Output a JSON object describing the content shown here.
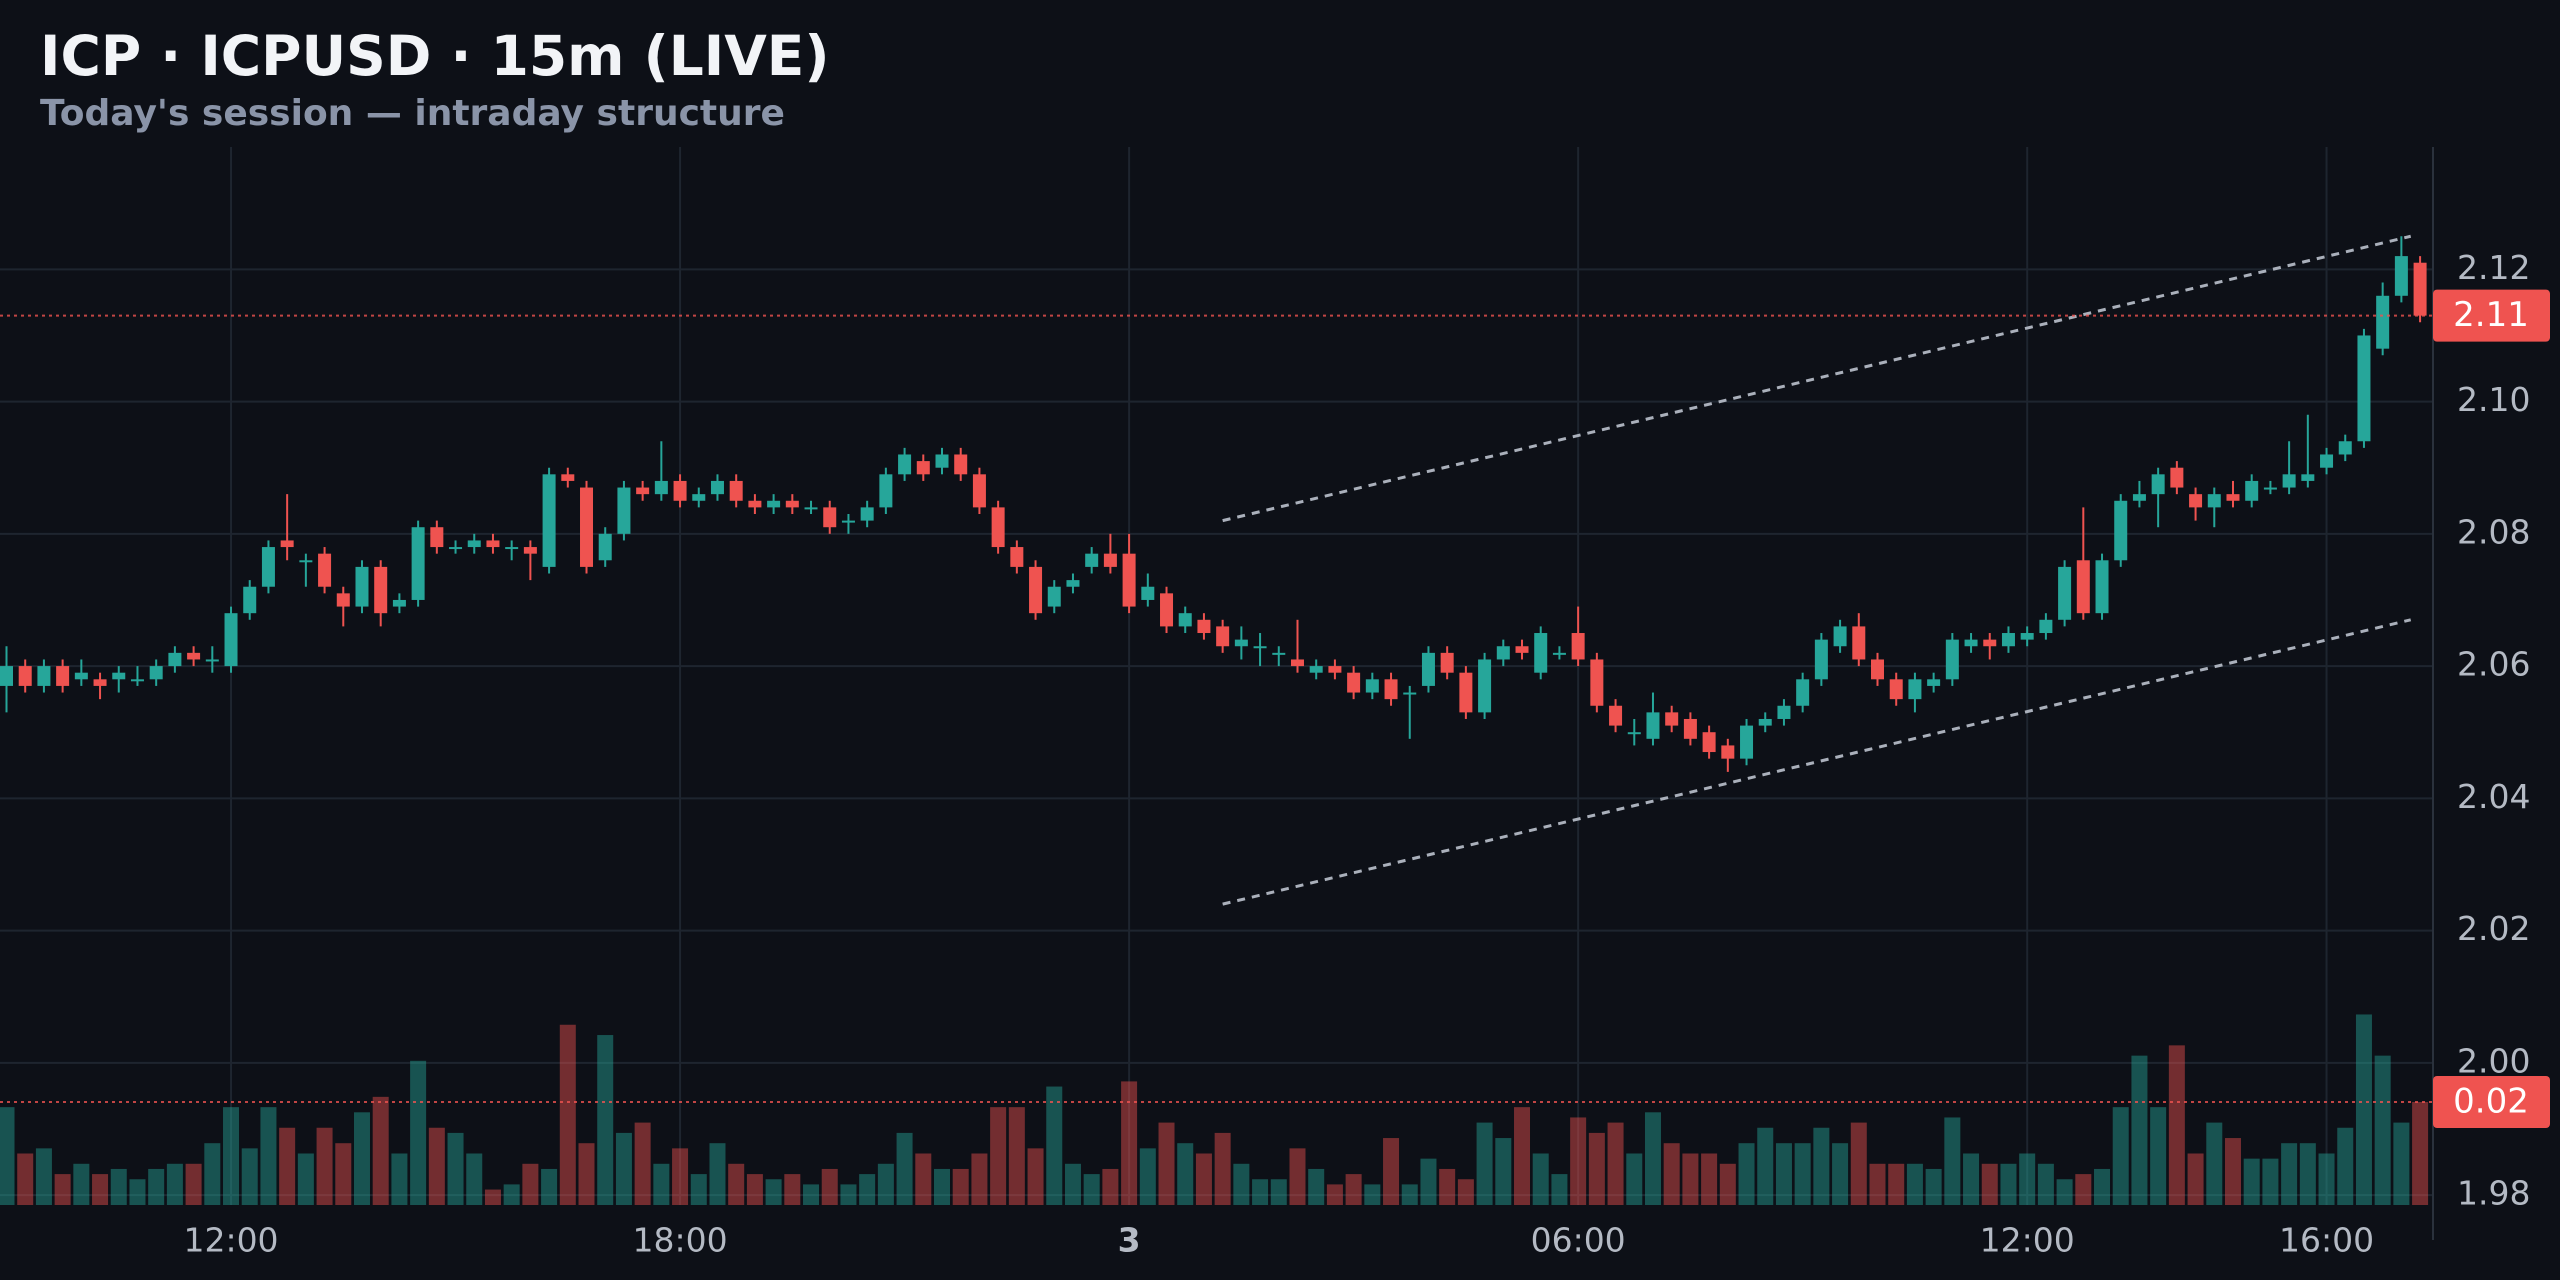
{
  "chart_data": {
    "type": "candlestick",
    "title": "ICP · ICPUSD · 15m (LIVE)",
    "subtitle": "Today's session — intraday structure",
    "categories": [
      null,
      null,
      null,
      null,
      null,
      null,
      null,
      null,
      null,
      null,
      null,
      null,
      "12:00",
      null,
      null,
      null,
      null,
      null,
      null,
      null,
      null,
      null,
      null,
      null,
      null,
      null,
      null,
      null,
      null,
      null,
      null,
      null,
      null,
      null,
      null,
      null,
      "18:00",
      null,
      null,
      null,
      null,
      null,
      null,
      null,
      null,
      null,
      null,
      null,
      null,
      null,
      null,
      null,
      null,
      null,
      null,
      null,
      null,
      null,
      null,
      null,
      "3",
      null,
      null,
      null,
      null,
      null,
      null,
      null,
      null,
      null,
      null,
      null,
      null,
      null,
      null,
      null,
      null,
      null,
      null,
      null,
      null,
      null,
      null,
      null,
      "06:00",
      null,
      null,
      null,
      null,
      null,
      null,
      null,
      null,
      null,
      null,
      null,
      null,
      null,
      null,
      null,
      null,
      null,
      null,
      null,
      null,
      null,
      null,
      null,
      "12:00",
      null,
      null,
      null,
      null,
      null,
      null,
      null,
      null,
      null,
      null,
      null,
      null,
      null,
      null,
      null,
      "16:00",
      null,
      null,
      null,
      null,
      null
    ],
    "open": [
      2.057,
      2.06,
      2.057,
      2.06,
      2.058,
      2.058,
      2.058,
      2.058,
      2.058,
      2.06,
      2.062,
      2.061,
      2.06,
      2.068,
      2.072,
      2.079,
      2.076,
      2.077,
      2.071,
      2.069,
      2.075,
      2.069,
      2.07,
      2.081,
      2.078,
      2.078,
      2.079,
      2.078,
      2.078,
      2.075,
      2.089,
      2.087,
      2.076,
      2.08,
      2.087,
      2.086,
      2.088,
      2.085,
      2.086,
      2.088,
      2.085,
      2.084,
      2.085,
      2.084,
      2.084,
      2.082,
      2.082,
      2.084,
      2.089,
      2.091,
      2.09,
      2.092,
      2.089,
      2.084,
      2.078,
      2.075,
      2.069,
      2.072,
      2.075,
      2.077,
      2.077,
      2.07,
      2.071,
      2.066,
      2.067,
      2.066,
      2.063,
      2.063,
      2.062,
      2.061,
      2.059,
      2.06,
      2.059,
      2.056,
      2.058,
      2.056,
      2.057,
      2.062,
      2.059,
      2.053,
      2.061,
      2.063,
      2.059,
      2.062,
      2.065,
      2.061,
      2.054,
      2.05,
      2.049,
      2.053,
      2.052,
      2.05,
      2.048,
      2.046,
      2.051,
      2.052,
      2.054,
      2.058,
      2.063,
      2.066,
      2.061,
      2.058,
      2.055,
      2.057,
      2.058,
      2.063,
      2.064,
      2.063,
      2.064,
      2.065,
      2.067,
      2.076,
      2.068,
      2.076,
      2.085,
      2.086,
      2.09,
      2.086,
      2.084,
      2.086,
      2.085,
      2.087,
      2.087,
      2.088,
      2.09,
      2.092,
      2.094,
      2.108,
      2.116,
      2.121
    ],
    "high": [
      2.063,
      2.061,
      2.061,
      2.061,
      2.061,
      2.059,
      2.06,
      2.06,
      2.061,
      2.063,
      2.063,
      2.063,
      2.069,
      2.073,
      2.079,
      2.086,
      2.077,
      2.078,
      2.072,
      2.076,
      2.076,
      2.071,
      2.082,
      2.082,
      2.079,
      2.08,
      2.08,
      2.079,
      2.079,
      2.09,
      2.09,
      2.088,
      2.081,
      2.088,
      2.088,
      2.094,
      2.089,
      2.087,
      2.089,
      2.089,
      2.086,
      2.086,
      2.086,
      2.085,
      2.085,
      2.083,
      2.085,
      2.09,
      2.093,
      2.092,
      2.093,
      2.093,
      2.09,
      2.085,
      2.079,
      2.076,
      2.073,
      2.074,
      2.078,
      2.08,
      2.08,
      2.074,
      2.072,
      2.069,
      2.068,
      2.067,
      2.066,
      2.065,
      2.063,
      2.067,
      2.061,
      2.061,
      2.06,
      2.059,
      2.059,
      2.057,
      2.063,
      2.063,
      2.06,
      2.062,
      2.064,
      2.064,
      2.066,
      2.063,
      2.069,
      2.062,
      2.055,
      2.052,
      2.056,
      2.054,
      2.053,
      2.051,
      2.049,
      2.052,
      2.053,
      2.055,
      2.059,
      2.065,
      2.067,
      2.068,
      2.062,
      2.059,
      2.059,
      2.059,
      2.065,
      2.065,
      2.065,
      2.066,
      2.066,
      2.068,
      2.076,
      2.084,
      2.077,
      2.086,
      2.088,
      2.09,
      2.091,
      2.087,
      2.087,
      2.088,
      2.089,
      2.088,
      2.094,
      2.098,
      2.093,
      2.095,
      2.111,
      2.118,
      2.125,
      2.122
    ],
    "low": [
      2.053,
      2.056,
      2.056,
      2.056,
      2.057,
      2.055,
      2.056,
      2.057,
      2.057,
      2.059,
      2.06,
      2.059,
      2.059,
      2.067,
      2.071,
      2.076,
      2.072,
      2.071,
      2.066,
      2.068,
      2.066,
      2.068,
      2.069,
      2.077,
      2.077,
      2.077,
      2.077,
      2.076,
      2.073,
      2.074,
      2.087,
      2.074,
      2.075,
      2.079,
      2.085,
      2.085,
      2.084,
      2.084,
      2.085,
      2.084,
      2.083,
      2.083,
      2.083,
      2.083,
      2.08,
      2.08,
      2.081,
      2.083,
      2.088,
      2.088,
      2.089,
      2.088,
      2.083,
      2.077,
      2.074,
      2.067,
      2.068,
      2.071,
      2.074,
      2.074,
      2.068,
      2.069,
      2.065,
      2.065,
      2.064,
      2.062,
      2.061,
      2.06,
      2.06,
      2.059,
      2.058,
      2.058,
      2.055,
      2.055,
      2.054,
      2.049,
      2.056,
      2.058,
      2.052,
      2.052,
      2.06,
      2.061,
      2.058,
      2.061,
      2.06,
      2.053,
      2.05,
      2.048,
      2.048,
      2.05,
      2.048,
      2.046,
      2.044,
      2.045,
      2.05,
      2.051,
      2.053,
      2.057,
      2.062,
      2.06,
      2.057,
      2.054,
      2.053,
      2.056,
      2.057,
      2.062,
      2.061,
      2.062,
      2.063,
      2.064,
      2.066,
      2.067,
      2.067,
      2.075,
      2.084,
      2.081,
      2.086,
      2.082,
      2.081,
      2.084,
      2.084,
      2.086,
      2.086,
      2.087,
      2.089,
      2.091,
      2.093,
      2.107,
      2.115,
      2.112
    ],
    "close": [
      2.06,
      2.057,
      2.06,
      2.057,
      2.059,
      2.057,
      2.059,
      2.058,
      2.06,
      2.062,
      2.061,
      2.061,
      2.068,
      2.072,
      2.078,
      2.078,
      2.076,
      2.072,
      2.069,
      2.075,
      2.068,
      2.07,
      2.081,
      2.078,
      2.078,
      2.079,
      2.078,
      2.078,
      2.077,
      2.089,
      2.088,
      2.075,
      2.08,
      2.087,
      2.086,
      2.088,
      2.085,
      2.086,
      2.088,
      2.085,
      2.084,
      2.085,
      2.084,
      2.084,
      2.081,
      2.082,
      2.084,
      2.089,
      2.092,
      2.089,
      2.092,
      2.089,
      2.084,
      2.078,
      2.075,
      2.068,
      2.072,
      2.073,
      2.077,
      2.075,
      2.069,
      2.072,
      2.066,
      2.068,
      2.065,
      2.063,
      2.064,
      2.063,
      2.062,
      2.06,
      2.06,
      2.059,
      2.056,
      2.058,
      2.055,
      2.056,
      2.062,
      2.059,
      2.053,
      2.061,
      2.063,
      2.062,
      2.065,
      2.062,
      2.061,
      2.054,
      2.051,
      2.05,
      2.053,
      2.051,
      2.049,
      2.047,
      2.046,
      2.051,
      2.052,
      2.054,
      2.058,
      2.064,
      2.066,
      2.061,
      2.058,
      2.055,
      2.058,
      2.058,
      2.064,
      2.064,
      2.063,
      2.065,
      2.065,
      2.067,
      2.075,
      2.068,
      2.076,
      2.085,
      2.086,
      2.089,
      2.087,
      2.084,
      2.086,
      2.085,
      2.088,
      2.087,
      2.089,
      2.089,
      2.092,
      2.094,
      2.11,
      2.116,
      2.122,
      2.113
    ],
    "volume": [
      0.019,
      0.01,
      0.011,
      0.006,
      0.008,
      0.006,
      0.007,
      0.005,
      0.007,
      0.008,
      0.008,
      0.012,
      0.019,
      0.011,
      0.019,
      0.015,
      0.01,
      0.015,
      0.012,
      0.018,
      0.021,
      0.01,
      0.028,
      0.015,
      0.014,
      0.01,
      0.003,
      0.004,
      0.008,
      0.007,
      0.035,
      0.012,
      0.033,
      0.014,
      0.016,
      0.008,
      0.011,
      0.006,
      0.012,
      0.008,
      0.006,
      0.005,
      0.006,
      0.004,
      0.007,
      0.004,
      0.006,
      0.008,
      0.014,
      0.01,
      0.007,
      0.007,
      0.01,
      0.019,
      0.019,
      0.011,
      0.023,
      0.008,
      0.006,
      0.007,
      0.024,
      0.011,
      0.016,
      0.012,
      0.01,
      0.014,
      0.008,
      0.005,
      0.005,
      0.011,
      0.007,
      0.004,
      0.006,
      0.004,
      0.013,
      0.004,
      0.009,
      0.007,
      0.005,
      0.016,
      0.013,
      0.019,
      0.01,
      0.006,
      0.017,
      0.014,
      0.016,
      0.01,
      0.018,
      0.012,
      0.01,
      0.01,
      0.008,
      0.012,
      0.015,
      0.012,
      0.012,
      0.015,
      0.012,
      0.016,
      0.008,
      0.008,
      0.008,
      0.007,
      0.017,
      0.01,
      0.008,
      0.008,
      0.01,
      0.008,
      0.005,
      0.006,
      0.007,
      0.019,
      0.029,
      0.019,
      0.031,
      0.01,
      0.016,
      0.013,
      0.009,
      0.009,
      0.012,
      0.012,
      0.01,
      0.015,
      0.037,
      0.029,
      0.016,
      0.02
    ],
    "volume_ylim": [
      0,
      0.1
    ],
    "last_close_label": "2.11",
    "last_volume_label": "0.02",
    "ylim": [
      1.9785,
      2.1385
    ],
    "yticks": [
      1.98,
      {
        "value": 2,
        "label": "2.00"
      },
      2.02,
      2.04,
      2.06,
      2.08,
      {
        "value": 2.1,
        "label": "2.10"
      },
      2.12
    ],
    "trendlines": [
      {
        "x": [
          65,
          128.5
        ],
        "y": [
          2.082,
          2.125
        ]
      },
      {
        "x": [
          65,
          128.5
        ],
        "y": [
          2.024,
          2.067
        ]
      }
    ],
    "up_color": "#26a69a",
    "down_color": "#ef5350",
    "grid": true
  }
}
